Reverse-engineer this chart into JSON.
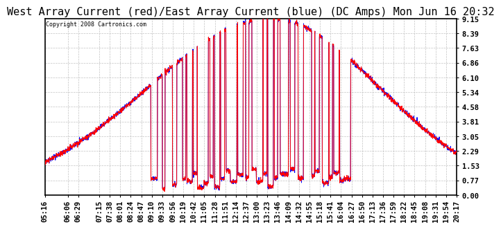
{
  "title": "West Array Current (red)/East Array Current (blue) (DC Amps) Mon Jun 16 20:32",
  "copyright": "Copyright 2008 Cartronics.com",
  "yticks": [
    0.0,
    0.77,
    1.53,
    2.29,
    3.05,
    3.81,
    4.58,
    5.34,
    6.1,
    6.86,
    7.63,
    8.39,
    9.15
  ],
  "ymin": 0.0,
  "ymax": 9.15,
  "x_labels": [
    "05:16",
    "06:06",
    "06:29",
    "07:15",
    "07:38",
    "08:01",
    "08:24",
    "08:47",
    "09:10",
    "09:33",
    "09:56",
    "10:19",
    "10:42",
    "11:05",
    "11:28",
    "11:51",
    "12:14",
    "12:37",
    "13:00",
    "13:23",
    "13:46",
    "14:09",
    "14:32",
    "14:55",
    "15:18",
    "15:41",
    "16:04",
    "16:27",
    "16:50",
    "17:13",
    "17:36",
    "17:59",
    "18:22",
    "18:45",
    "19:08",
    "19:31",
    "19:54",
    "20:17"
  ],
  "background_color": "#ffffff",
  "grid_color": "#bbbbbb",
  "red_color": "#ff0000",
  "blue_color": "#0000ff",
  "title_font_size": 11,
  "tick_font_size": 7.5
}
